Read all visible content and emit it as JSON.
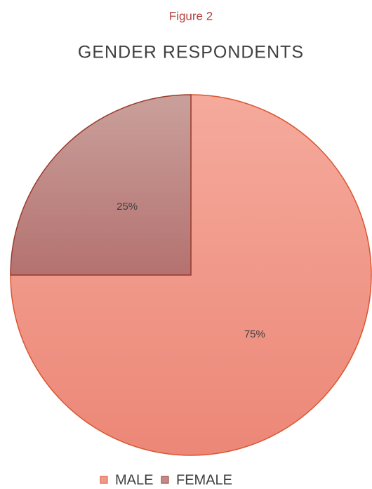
{
  "chart_data": {
    "type": "pie",
    "caption": "Figure 2",
    "title": "GENDER RESPONDENTS",
    "categories": [
      "MALE",
      "FEMALE"
    ],
    "values": [
      75,
      25
    ],
    "value_labels": [
      "75%",
      "25%"
    ],
    "colors": [
      "#f0998a",
      "#c08a86"
    ],
    "legend": "bottom"
  }
}
